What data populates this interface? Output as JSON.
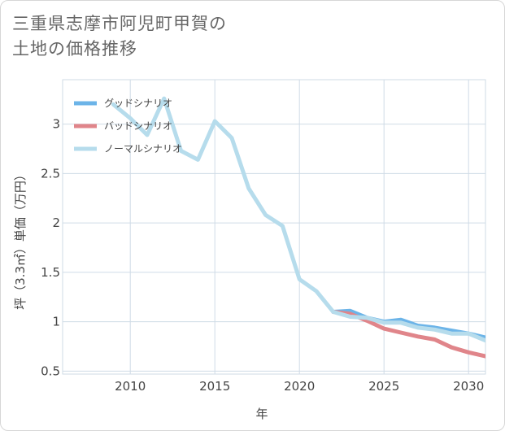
{
  "title": "三重県志摩市阿児町甲賀の\n土地の価格推移",
  "chart_data": {
    "type": "line",
    "xlabel": "年",
    "ylabel": "坪（3.3㎡）単価（万円）",
    "xlim": [
      2006,
      2031
    ],
    "ylim": [
      0.47,
      3.45
    ],
    "xticks": [
      2010,
      2015,
      2020,
      2025,
      2030
    ],
    "yticks": [
      0.5,
      1,
      1.5,
      2,
      2.5,
      3
    ],
    "ytick_labels": [
      "0.5",
      "1",
      "1.5",
      "2",
      "2.5",
      "3"
    ],
    "grid": true,
    "legend_position": "top-left",
    "series": [
      {
        "name": "グッドシナリオ",
        "color": "#6cb4e8",
        "x": [
          2022,
          2023,
          2024,
          2025,
          2026,
          2027,
          2028,
          2029,
          2030,
          2031
        ],
        "values": [
          1.1,
          1.11,
          1.04,
          1.0,
          1.02,
          0.96,
          0.94,
          0.91,
          0.88,
          0.84
        ]
      },
      {
        "name": "バッドシナリオ",
        "color": "#e0858a",
        "x": [
          2022,
          2023,
          2024,
          2025,
          2026,
          2027,
          2028,
          2029,
          2030,
          2031
        ],
        "values": [
          1.1,
          1.08,
          1.01,
          0.93,
          0.89,
          0.85,
          0.82,
          0.74,
          0.69,
          0.65
        ]
      },
      {
        "name": "ノーマルシナリオ",
        "color": "#b6dcec",
        "x": [
          2009,
          2010,
          2011,
          2012,
          2013,
          2014,
          2015,
          2016,
          2017,
          2018,
          2019,
          2020,
          2021,
          2022,
          2023,
          2024,
          2025,
          2026,
          2027,
          2028,
          2029,
          2030,
          2031
        ],
        "values": [
          3.2,
          3.06,
          2.89,
          3.26,
          2.73,
          2.64,
          3.03,
          2.86,
          2.35,
          2.08,
          1.97,
          1.43,
          1.31,
          1.1,
          1.05,
          1.04,
          0.99,
          0.99,
          0.94,
          0.92,
          0.88,
          0.88,
          0.81
        ]
      }
    ]
  }
}
